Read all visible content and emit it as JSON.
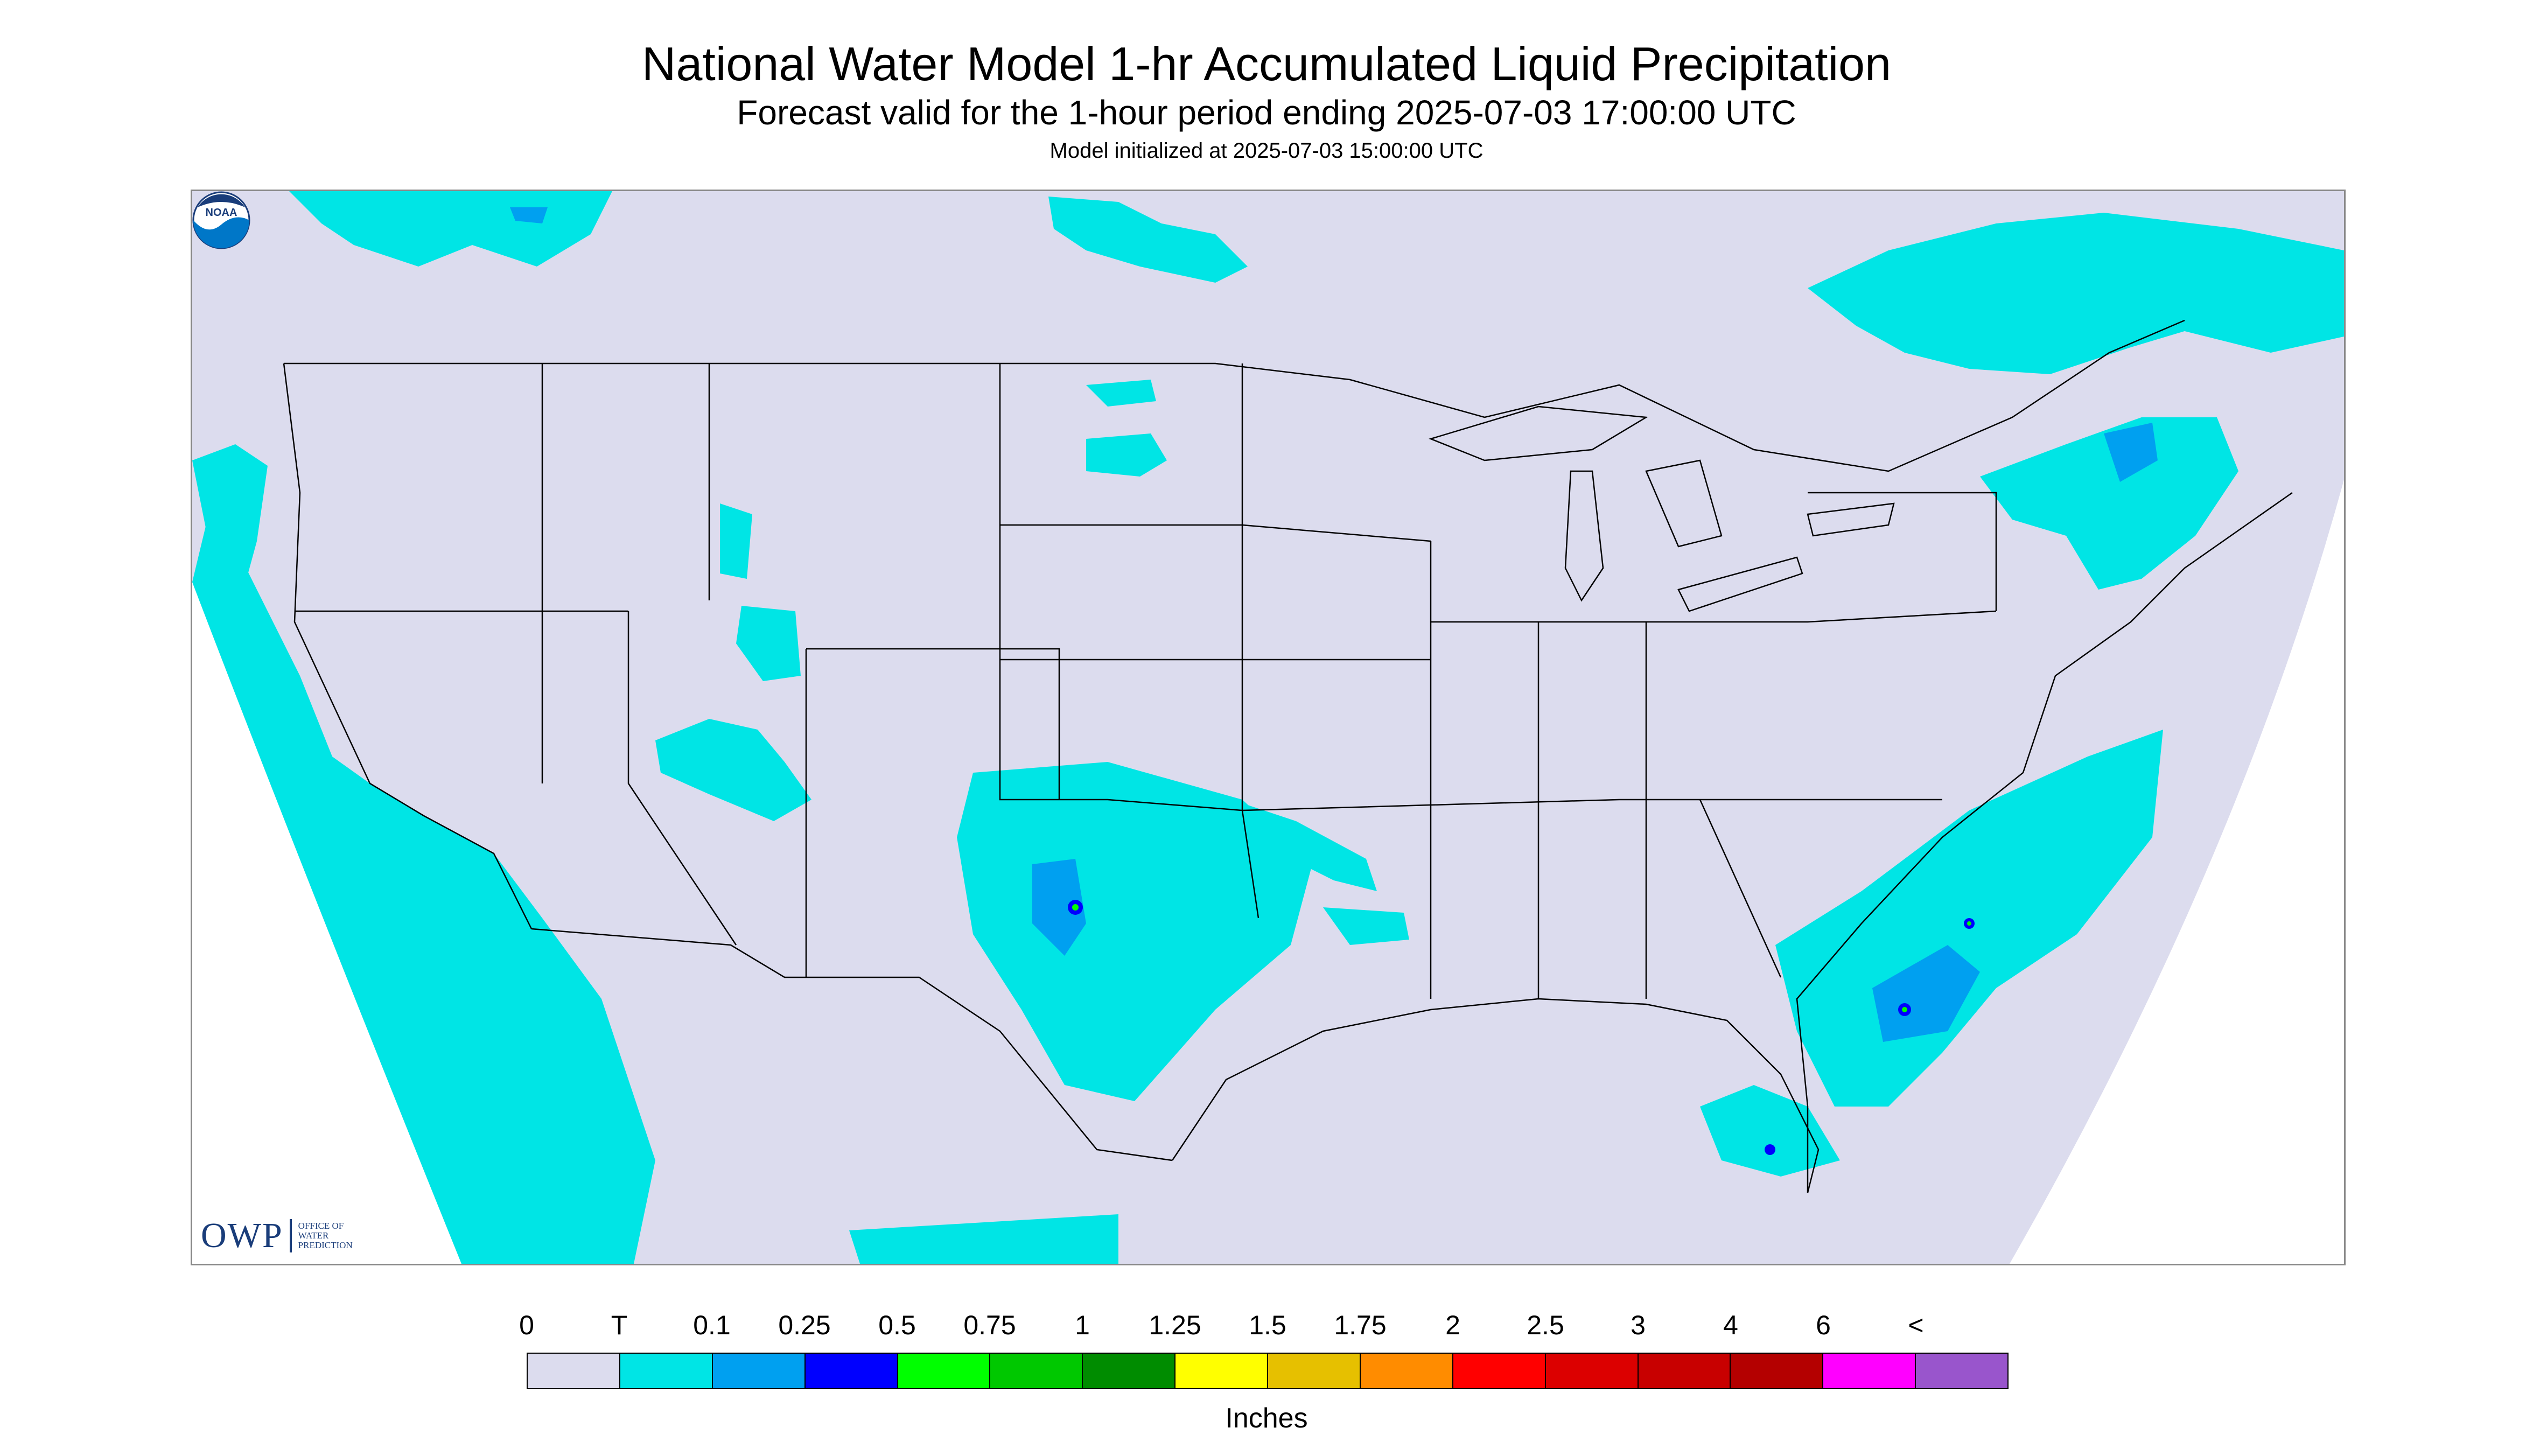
{
  "header": {
    "title": "National Water Model 1-hr Accumulated Liquid Precipitation",
    "subtitle": "Forecast valid for the 1-hour period ending 2025-07-03 17:00:00 UTC",
    "init_line": "Model initialized at 2025-07-03 15:00:00 UTC"
  },
  "map": {
    "background_color": "#dcdcee",
    "outside_domain_color": "#ffffff",
    "boundary_color": "#000000",
    "precip_colors": {
      "trace": "#00e5e5",
      "light": "#00a0f0",
      "moderate": "#0000ff",
      "heavy": "#00ff00"
    },
    "logos": {
      "owp_mark": "OWP",
      "owp_text": [
        "OFFICE OF",
        "WATER",
        "PREDICTION"
      ],
      "noaa_icon": "noaa-logo-icon",
      "noaa_text": "NOAA"
    }
  },
  "legend": {
    "units": "Inches",
    "tick_labels": [
      "0",
      "T",
      "0.1",
      "0.25",
      "0.5",
      "0.75",
      "1",
      "1.25",
      "1.5",
      "1.75",
      "2",
      "2.5",
      "3",
      "4",
      "6",
      "<"
    ],
    "colors": [
      "#dcdcee",
      "#00e5e5",
      "#00a0f0",
      "#0000ff",
      "#00ff00",
      "#00c800",
      "#008c00",
      "#ffff00",
      "#e6c000",
      "#ff8c00",
      "#ff0000",
      "#dc0000",
      "#c80000",
      "#b40000",
      "#ff00ff",
      "#9955cc"
    ]
  }
}
